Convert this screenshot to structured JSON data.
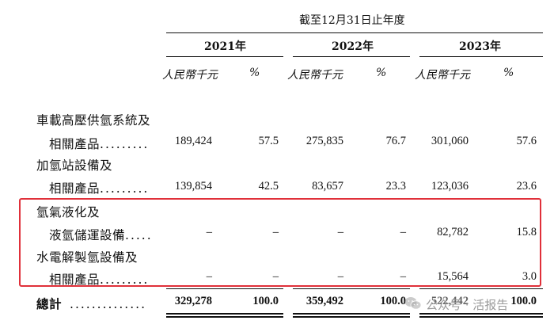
{
  "header": {
    "period_title": "截至12月31日止年度",
    "years": [
      "2021年",
      "2022年",
      "2023年"
    ],
    "unit_amount": "人民幣千元",
    "unit_pct": "%"
  },
  "rows": [
    {
      "line1": "車載高壓供氫系統及",
      "line2": "相關產品",
      "dots": ".........",
      "values": [
        "189,424",
        "57.5",
        "275,835",
        "76.7",
        "301,060",
        "57.6"
      ]
    },
    {
      "line1": "加氫站設備及",
      "line2": "相關產品",
      "dots": ".........",
      "values": [
        "139,854",
        "42.5",
        "83,657",
        "23.3",
        "123,036",
        "23.6"
      ]
    },
    {
      "line1": "氫氣液化及",
      "line2": "液氫儲運設備",
      "dots": ".....",
      "values": [
        "–",
        "–",
        "–",
        "–",
        "82,782",
        "15.8"
      ]
    },
    {
      "line1": "水電解製氫設備及",
      "line2": "相關產品",
      "dots": ".........",
      "values": [
        "–",
        "–",
        "–",
        "–",
        "15,564",
        "3.0"
      ]
    }
  ],
  "total": {
    "label": "總計",
    "dots": "..............",
    "values": [
      "329,278",
      "100.0",
      "359,492",
      "100.0",
      "522,442",
      "100.0"
    ]
  },
  "watermark": {
    "text": "公众号 · 活报告",
    "icon": "wechat-icon"
  },
  "colors": {
    "highlight_box": "#e0303a"
  }
}
